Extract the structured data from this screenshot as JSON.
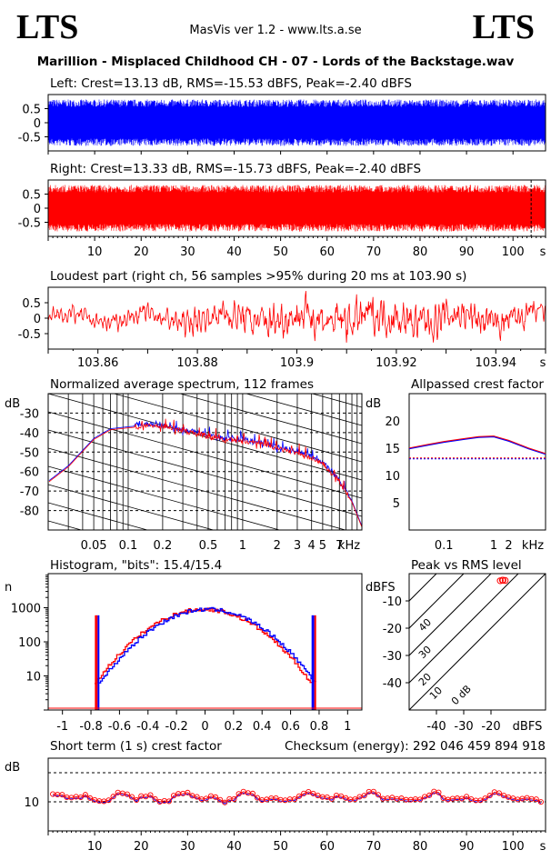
{
  "header": {
    "brand_left": "LTS",
    "brand_right": "LTS",
    "app_title": "MasVis ver 1.2 - www.lts.a.se",
    "file_title": "Marillion - Misplaced Childhood CH - 07 - Lords of the Backstage.wav"
  },
  "colors": {
    "left": "#0000ff",
    "right": "#ff0000",
    "axis": "#000000"
  },
  "chart_data": [
    {
      "id": "left_waveform",
      "type": "area",
      "title": "Left: Crest=13.13 dB, RMS=-15.53 dBFS, Peak=-2.40 dBFS",
      "series": [
        {
          "name": "Left",
          "color": "#0000ff",
          "min": -0.75,
          "max": 0.75
        }
      ],
      "x_range": [
        0,
        107
      ],
      "ylim": [
        -1,
        1
      ],
      "yticks": [
        0.5,
        0,
        -0.5
      ],
      "ytick_labels": [
        "0.5",
        "0",
        "-0.5"
      ]
    },
    {
      "id": "right_waveform",
      "type": "area",
      "title": "Right: Crest=13.33 dB, RMS=-15.73 dBFS, Peak=-2.40 dBFS",
      "series": [
        {
          "name": "Right",
          "color": "#ff0000",
          "min": -0.75,
          "max": 0.75
        }
      ],
      "x_range": [
        0,
        107
      ],
      "ylim": [
        -1,
        1
      ],
      "yticks": [
        0.5,
        0,
        -0.5
      ],
      "ytick_labels": [
        "0.5",
        "0",
        "-0.5"
      ],
      "xticks": [
        10,
        20,
        30,
        40,
        50,
        60,
        70,
        80,
        90,
        100
      ],
      "xunit": "s",
      "marker_x": 103.9
    },
    {
      "id": "loudest_part",
      "type": "line",
      "title": "Loudest part (right ch, 56 samples >95% during 20 ms at 103.90 s)",
      "x_range": [
        103.85,
        103.95
      ],
      "ylim": [
        -1,
        1
      ],
      "yticks": [
        0.5,
        0,
        -0.5
      ],
      "ytick_labels": [
        "0.5",
        "0",
        "-0.5"
      ],
      "xticks": [
        103.86,
        103.88,
        103.9,
        103.92,
        103.94
      ],
      "xtick_labels": [
        "103.86",
        "103.88",
        "103.9",
        "103.92",
        "103.94"
      ],
      "xunit": "s",
      "series": [
        {
          "name": "Right",
          "color": "#ff0000"
        }
      ]
    },
    {
      "id": "avg_spectrum",
      "type": "line",
      "title": "Normalized average spectrum, 112 frames",
      "ylabel": "dB",
      "xunit": "kHz",
      "ylim": [
        -90,
        -20
      ],
      "yticks": [
        -30,
        -40,
        -50,
        -60,
        -70,
        -80
      ],
      "xlim_khz": [
        0.02,
        11
      ],
      "xtick_labels": [
        "0.05",
        "0.1",
        "0.2",
        "0.5",
        "1",
        "2",
        "3",
        "4",
        "5",
        "7"
      ],
      "xticks_khz": [
        0.05,
        0.1,
        0.2,
        0.5,
        1,
        2,
        3,
        4,
        5,
        7
      ],
      "points_khz": [
        0.02,
        0.03,
        0.05,
        0.07,
        0.1,
        0.15,
        0.2,
        0.3,
        0.5,
        0.7,
        1,
        1.5,
        2,
        3,
        4,
        5,
        7,
        9,
        11
      ],
      "points_db": [
        -65,
        -57,
        -43,
        -38,
        -37,
        -36,
        -37,
        -39,
        -42,
        -44,
        -44,
        -46,
        -48,
        -50,
        -53,
        -56,
        -65,
        -75,
        -88
      ]
    },
    {
      "id": "allpass_crest",
      "type": "line",
      "title": "Allpassed crest factor",
      "ylabel": "dB",
      "xunit": "kHz",
      "ylim": [
        0,
        25
      ],
      "yticks": [
        20,
        15,
        10,
        5
      ],
      "xticks_khz": [
        0.1,
        1,
        2
      ],
      "xtick_labels": [
        "0.1",
        "1",
        "2"
      ],
      "points_khz": [
        0.02,
        0.05,
        0.1,
        0.2,
        0.5,
        1,
        2,
        5,
        11
      ],
      "points_db": [
        15,
        15.7,
        16.2,
        16.6,
        17.1,
        17.2,
        16.4,
        15.0,
        14.0
      ],
      "reference_db": 13.2
    },
    {
      "id": "histogram",
      "type": "bar",
      "title": "Histogram, \"bits\": 15.4/15.4",
      "ylabel": "n",
      "xlim": [
        -1.1,
        1.1
      ],
      "xticks": [
        -1,
        -0.8,
        -0.6,
        -0.4,
        -0.2,
        0,
        0.2,
        0.4,
        0.6,
        0.8,
        1
      ],
      "xtick_labels": [
        "-1",
        "-0.8",
        "-0.6",
        "-0.4",
        "-0.2",
        "0",
        "0.2",
        "0.4",
        "0.6",
        "0.8",
        "1"
      ],
      "yscale": "log",
      "ylim": [
        1,
        10000
      ],
      "yticks": [
        1000,
        100,
        10
      ],
      "ytick_labels": [
        "1000",
        "100",
        "10"
      ],
      "peak_count": 900,
      "edge_spike_x": 0.76,
      "edge_spike_count": 600
    },
    {
      "id": "peak_vs_rms",
      "type": "scatter",
      "title": "Peak vs RMS level",
      "ylabel": "dBFS",
      "xlabel": "dBFS",
      "xlim": [
        -50,
        0
      ],
      "ylim": [
        -50,
        0
      ],
      "xticks": [
        -40,
        -30,
        -20
      ],
      "yticks": [
        -10,
        -20,
        -30,
        -40
      ],
      "diagonal_labels": [
        "40",
        "30",
        "20",
        "10",
        "0 dB"
      ],
      "points": [
        {
          "x": -15.6,
          "y": -2.4
        },
        {
          "x": -15.8,
          "y": -2.4
        },
        {
          "x": -14.8,
          "y": -2.5
        },
        {
          "x": -16.6,
          "y": -2.6
        }
      ]
    },
    {
      "id": "short_term_crest",
      "type": "line",
      "title": "Short term (1 s) crest factor",
      "ylabel": "dB",
      "xunit": "s",
      "annotation": "Checksum (energy):  292 046 459 894 918",
      "xlim": [
        0,
        107
      ],
      "ylim": [
        0,
        25
      ],
      "yticks": [
        10
      ],
      "ytick_labels": [
        "10"
      ],
      "xticks": [
        10,
        20,
        30,
        40,
        50,
        60,
        70,
        80,
        90,
        100
      ],
      "dashed_y": [
        10,
        20
      ],
      "mean_db": 11.5
    }
  ]
}
